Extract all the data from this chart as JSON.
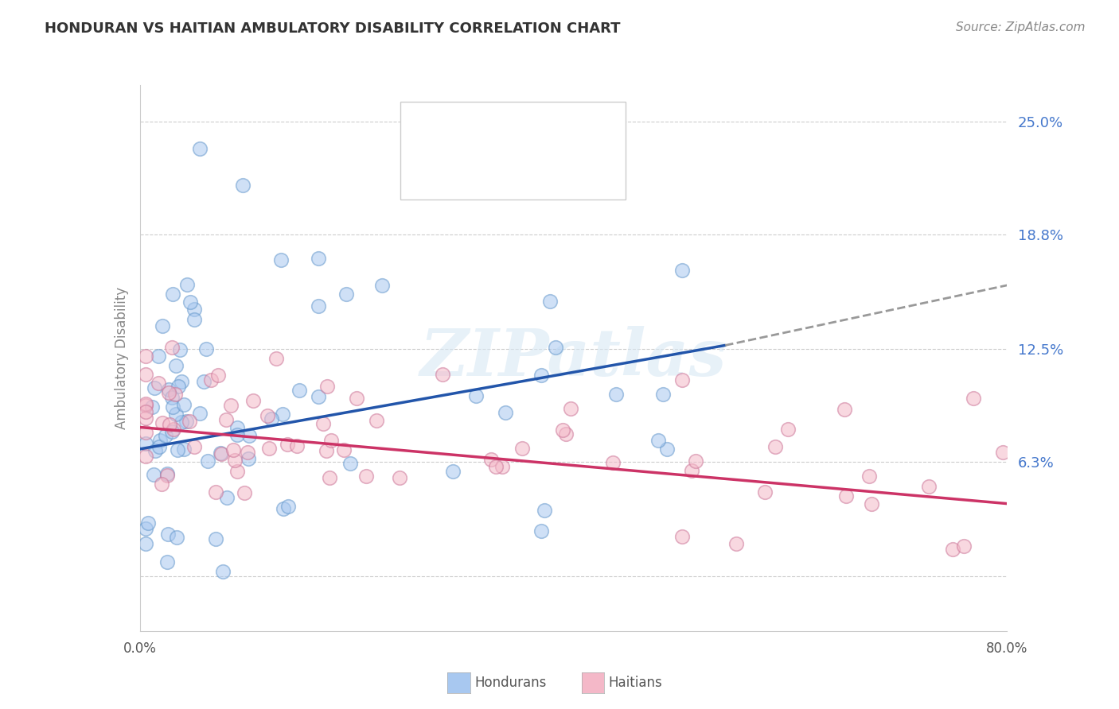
{
  "title": "HONDURAN VS HAITIAN AMBULATORY DISABILITY CORRELATION CHART",
  "source": "Source: ZipAtlas.com",
  "ylabel": "Ambulatory Disability",
  "watermark": "ZIPatlas",
  "blue_color": "#A8C8F0",
  "blue_edge_color": "#6699CC",
  "pink_color": "#F4B8C8",
  "pink_edge_color": "#CC7799",
  "blue_line_color": "#2255AA",
  "pink_line_color": "#CC3366",
  "dashed_line_color": "#999999",
  "background_color": "#FFFFFF",
  "grid_color": "#CCCCCC",
  "ytick_color": "#4477CC",
  "xlim": [
    0.0,
    0.8
  ],
  "ylim": [
    -0.03,
    0.27
  ],
  "ytick_vals": [
    0.0,
    0.063,
    0.125,
    0.188,
    0.25
  ],
  "ytick_labels": [
    "",
    "6.3%",
    "12.5%",
    "18.8%",
    "25.0%"
  ],
  "xtick_vals": [
    0.0,
    0.1,
    0.2,
    0.3,
    0.4,
    0.5,
    0.6,
    0.7,
    0.8
  ],
  "xtick_labels": [
    "0.0%",
    "",
    "",
    "",
    "",
    "",
    "",
    "",
    "80.0%"
  ],
  "hond_line_x0": 0.0,
  "hond_line_x1": 0.54,
  "hond_line_y0": 0.07,
  "hond_line_y1": 0.127,
  "dash_line_x0": 0.54,
  "dash_line_x1": 0.8,
  "dash_line_y0": 0.127,
  "dash_line_y1": 0.16,
  "hait_line_x0": 0.0,
  "hait_line_x1": 0.8,
  "hait_line_y0": 0.082,
  "hait_line_y1": 0.04
}
